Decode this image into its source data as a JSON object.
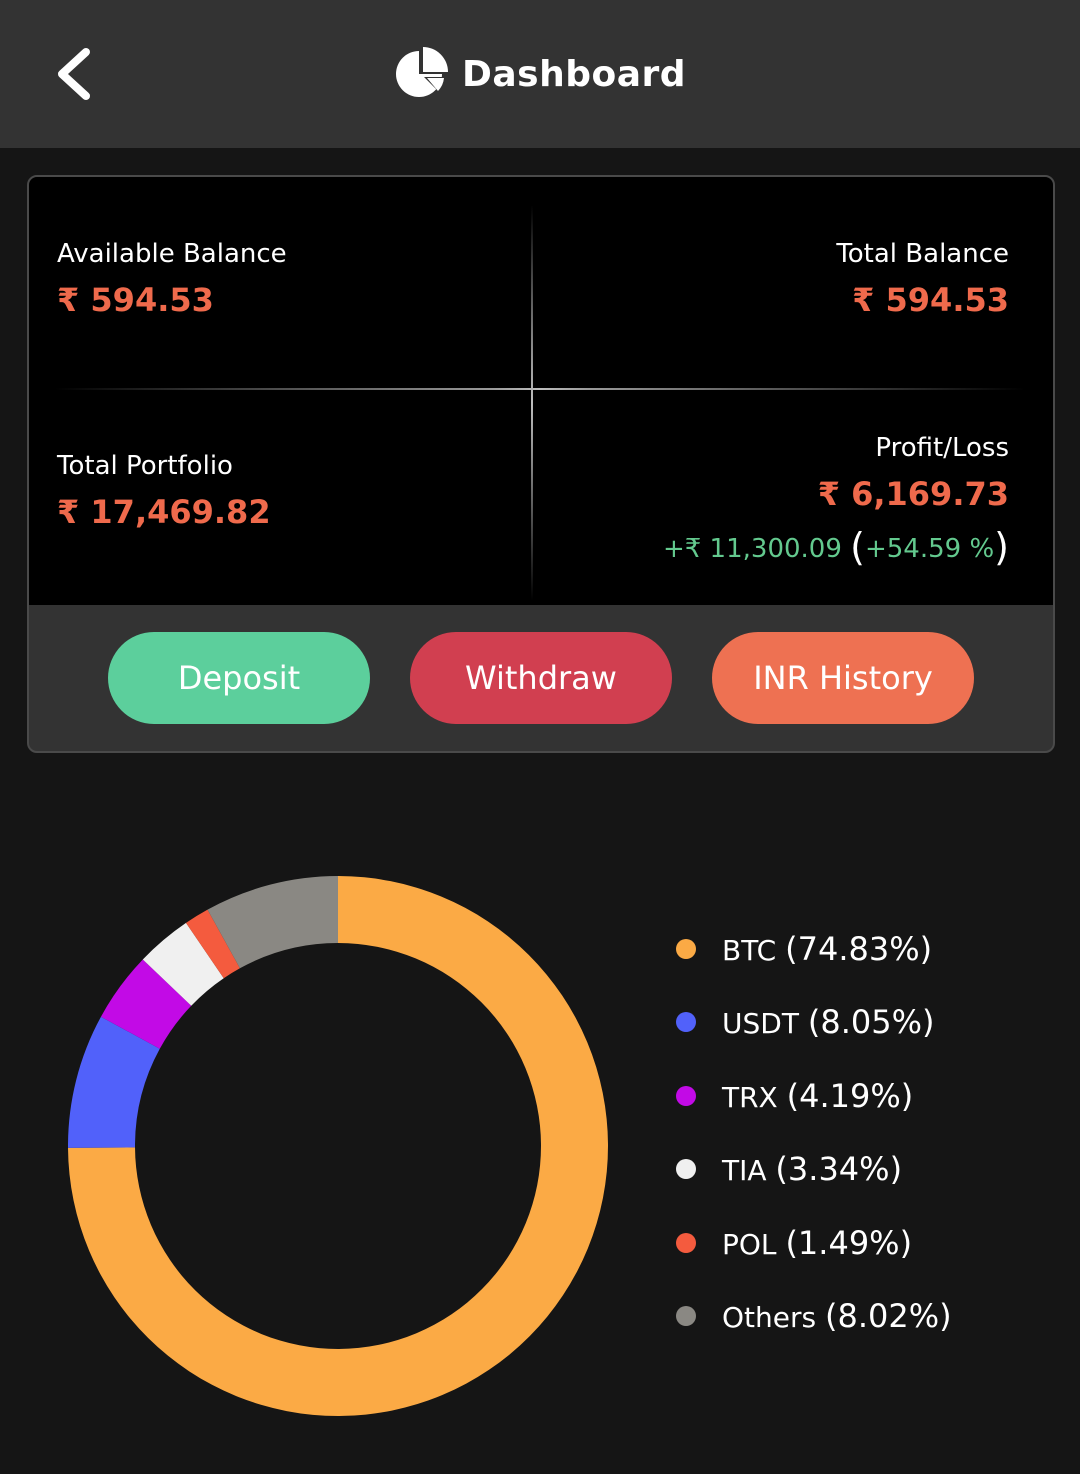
{
  "header": {
    "title": "Dashboard",
    "back_icon": "chevron-left-icon",
    "title_icon": "pie-chart-icon"
  },
  "stats": {
    "available_balance": {
      "label": "Available Balance",
      "value": "₹ 594.53"
    },
    "total_balance": {
      "label": "Total Balance",
      "value": "₹ 594.53"
    },
    "total_portfolio": {
      "label": "Total Portfolio",
      "value": "₹ 17,469.82"
    },
    "profit_loss": {
      "label": "Profit/Loss",
      "value": "₹ 6,169.73",
      "change_amount": "+₹ 11,300.09",
      "open_paren": "(",
      "change_percent": "+54.59 %",
      "close_paren": ")"
    }
  },
  "actions": {
    "deposit": "Deposit",
    "withdraw": "Withdraw",
    "inr_history": "INR History"
  },
  "colors": {
    "accent_value": "#ef6a4c",
    "positive": "#63c98e",
    "deposit": "#5ccf9c",
    "withdraw": "#d13f50",
    "history": "#ee7152"
  },
  "chart_data": {
    "type": "pie",
    "donut": true,
    "series": [
      {
        "name": "BTC",
        "value": 74.83,
        "label": "BTC",
        "percent_text": "(74.83%)",
        "color": "#fbaa45"
      },
      {
        "name": "USDT",
        "value": 8.05,
        "label": "USDT",
        "percent_text": "(8.05%)",
        "color": "#5161fa"
      },
      {
        "name": "TRX",
        "value": 4.19,
        "label": "TRX",
        "percent_text": "(4.19%)",
        "color": "#c20ae6"
      },
      {
        "name": "TIA",
        "value": 3.34,
        "label": "TIA",
        "percent_text": "(3.34%)",
        "color": "#f0f0f0"
      },
      {
        "name": "POL",
        "value": 1.49,
        "label": "POL",
        "percent_text": "(1.49%)",
        "color": "#f45b3e"
      },
      {
        "name": "Others",
        "value": 8.02,
        "label": "Others",
        "percent_text": "(8.02%)",
        "color": "#8a8883"
      }
    ],
    "legend_position": "right"
  }
}
